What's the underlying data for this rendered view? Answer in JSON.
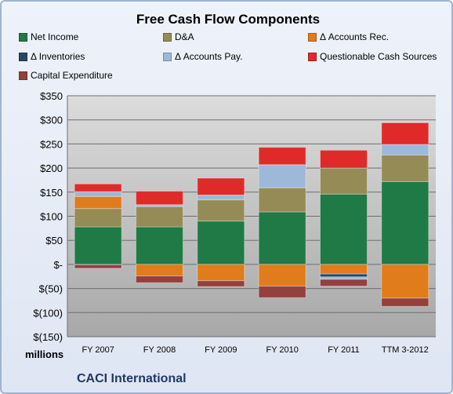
{
  "chart_data": {
    "type": "bar",
    "stacked": true,
    "title": "Free Cash Flow Components",
    "xlabel": "",
    "ylabel": "",
    "units_label": "millions",
    "footer": "CACI International",
    "categories": [
      "FY 2007",
      "FY 2008",
      "FY 2009",
      "FY 2010",
      "FY 2011",
      "TTM 3-2012"
    ],
    "ylim": [
      -150,
      350
    ],
    "yticks": [
      350,
      300,
      250,
      200,
      150,
      100,
      50,
      0,
      -50,
      -100,
      -150
    ],
    "ytick_labels": [
      "$350",
      "$300",
      "$250",
      "$200",
      "$150",
      "$100",
      "$50",
      "$-",
      "$(50)",
      "$(100)",
      "$(150)"
    ],
    "grid": true,
    "legend_position": "top",
    "series": [
      {
        "name": "Net Income",
        "color": "#1f7a45",
        "values": [
          78,
          78,
          90,
          109,
          146,
          172
        ]
      },
      {
        "name": "D&A",
        "color": "#958b57",
        "values": [
          38,
          42,
          44,
          50,
          54,
          55
        ]
      },
      {
        "name": "Δ Accounts Rec.",
        "color": "#e07c1c",
        "values": [
          25,
          -24,
          -34,
          -45,
          -20,
          -70
        ]
      },
      {
        "name": "Δ Inventories",
        "color": "#2b4560",
        "values": [
          -1,
          0,
          0,
          0,
          -6,
          0
        ]
      },
      {
        "name": "Δ Accounts Pay.",
        "color": "#9db8d8",
        "values": [
          10,
          4,
          10,
          48,
          -5,
          22
        ]
      },
      {
        "name": "Questionable Cash Sources",
        "color": "#e02a2a",
        "values": [
          16,
          28,
          35,
          36,
          37,
          45
        ]
      },
      {
        "name": "Capital Expenditure",
        "color": "#93403e",
        "values": [
          -7,
          -14,
          -12,
          -24,
          -14,
          -17
        ]
      }
    ]
  }
}
